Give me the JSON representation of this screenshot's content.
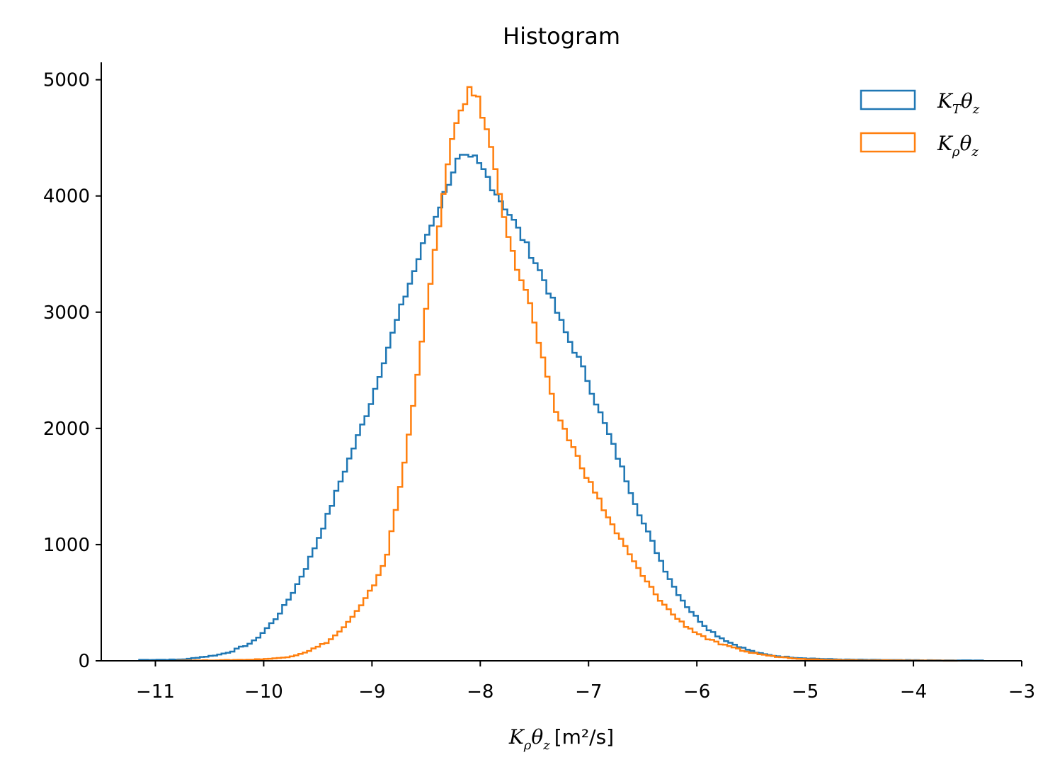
{
  "chart_data": {
    "type": "histogram",
    "title": "Histogram",
    "xlabel": "Kρθz [m²/s]",
    "ylabel": "",
    "xlim": [
      -11.5,
      -3
    ],
    "ylim": [
      0,
      5150
    ],
    "xticks": [
      -11,
      -10,
      -9,
      -8,
      -7,
      -6,
      -5,
      -4,
      -3
    ],
    "xtick_labels": [
      "−11",
      "−10",
      "−9",
      "−8",
      "−7",
      "−6",
      "−5",
      "−4",
      "−3"
    ],
    "yticks": [
      0,
      1000,
      2000,
      3000,
      4000,
      5000
    ],
    "ytick_labels": [
      "0",
      "1000",
      "2000",
      "3000",
      "4000",
      "5000"
    ],
    "grid": false,
    "legend_position": "top-right",
    "series": [
      {
        "name": "KTθz",
        "color": "#1f77b4",
        "style": "step",
        "points": [
          [
            -11.15,
            0
          ],
          [
            -11.15,
            8
          ],
          [
            -10.8,
            10
          ],
          [
            -10.7,
            15
          ],
          [
            -10.6,
            30
          ],
          [
            -10.5,
            40
          ],
          [
            -10.4,
            55
          ],
          [
            -10.3,
            80
          ],
          [
            -10.2,
            120
          ],
          [
            -10.1,
            160
          ],
          [
            -10.0,
            250
          ],
          [
            -9.9,
            350
          ],
          [
            -9.8,
            480
          ],
          [
            -9.7,
            640
          ],
          [
            -9.6,
            820
          ],
          [
            -9.5,
            1040
          ],
          [
            -9.4,
            1270
          ],
          [
            -9.3,
            1520
          ],
          [
            -9.2,
            1760
          ],
          [
            -9.1,
            2000
          ],
          [
            -9.0,
            2250
          ],
          [
            -8.9,
            2560
          ],
          [
            -8.8,
            2840
          ],
          [
            -8.7,
            3120
          ],
          [
            -8.6,
            3380
          ],
          [
            -8.5,
            3650
          ],
          [
            -8.45,
            3750
          ],
          [
            -8.4,
            3860
          ],
          [
            -8.35,
            3960
          ],
          [
            -8.3,
            4100
          ],
          [
            -8.25,
            4220
          ],
          [
            -8.2,
            4320
          ],
          [
            -8.15,
            4330
          ],
          [
            -8.1,
            4300
          ],
          [
            -8.05,
            4320
          ],
          [
            -8.0,
            4250
          ],
          [
            -7.95,
            4200
          ],
          [
            -7.9,
            4100
          ],
          [
            -7.8,
            3950
          ],
          [
            -7.7,
            3800
          ],
          [
            -7.6,
            3620
          ],
          [
            -7.5,
            3450
          ],
          [
            -7.4,
            3260
          ],
          [
            -7.3,
            3020
          ],
          [
            -7.2,
            2800
          ],
          [
            -7.1,
            2620
          ],
          [
            -7.0,
            2400
          ],
          [
            -6.9,
            2150
          ],
          [
            -6.8,
            1920
          ],
          [
            -6.7,
            1680
          ],
          [
            -6.6,
            1440
          ],
          [
            -6.5,
            1200
          ],
          [
            -6.4,
            1000
          ],
          [
            -6.3,
            800
          ],
          [
            -6.2,
            620
          ],
          [
            -6.1,
            480
          ],
          [
            -6.0,
            370
          ],
          [
            -5.9,
            280
          ],
          [
            -5.8,
            210
          ],
          [
            -5.7,
            160
          ],
          [
            -5.6,
            120
          ],
          [
            -5.5,
            85
          ],
          [
            -5.4,
            60
          ],
          [
            -5.3,
            45
          ],
          [
            -5.2,
            35
          ],
          [
            -5.1,
            28
          ],
          [
            -5.0,
            22
          ],
          [
            -4.9,
            18
          ],
          [
            -4.8,
            14
          ],
          [
            -4.6,
            10
          ],
          [
            -4.4,
            8
          ],
          [
            -4.2,
            6
          ],
          [
            -4.0,
            5
          ],
          [
            -3.8,
            4
          ],
          [
            -3.6,
            3
          ],
          [
            -3.35,
            3
          ]
        ]
      },
      {
        "name": "Kρθz",
        "color": "#ff7f0e",
        "style": "step",
        "points": [
          [
            -10.8,
            0
          ],
          [
            -10.8,
            2
          ],
          [
            -10.4,
            5
          ],
          [
            -10.1,
            10
          ],
          [
            -9.9,
            20
          ],
          [
            -9.8,
            30
          ],
          [
            -9.7,
            50
          ],
          [
            -9.6,
            80
          ],
          [
            -9.5,
            120
          ],
          [
            -9.4,
            170
          ],
          [
            -9.3,
            250
          ],
          [
            -9.2,
            350
          ],
          [
            -9.1,
            470
          ],
          [
            -9.0,
            620
          ],
          [
            -8.9,
            820
          ],
          [
            -8.85,
            950
          ],
          [
            -8.8,
            1200
          ],
          [
            -8.75,
            1450
          ],
          [
            -8.7,
            1700
          ],
          [
            -8.65,
            2000
          ],
          [
            -8.6,
            2350
          ],
          [
            -8.55,
            2700
          ],
          [
            -8.5,
            3000
          ],
          [
            -8.45,
            3300
          ],
          [
            -8.4,
            3650
          ],
          [
            -8.35,
            3950
          ],
          [
            -8.3,
            4250
          ],
          [
            -8.25,
            4500
          ],
          [
            -8.2,
            4700
          ],
          [
            -8.15,
            4800
          ],
          [
            -8.1,
            4900
          ],
          [
            -8.05,
            4880
          ],
          [
            -8.0,
            4780
          ],
          [
            -7.95,
            4600
          ],
          [
            -7.9,
            4400
          ],
          [
            -7.85,
            4200
          ],
          [
            -7.8,
            3950
          ],
          [
            -7.75,
            3700
          ],
          [
            -7.7,
            3500
          ],
          [
            -7.65,
            3350
          ],
          [
            -7.6,
            3250
          ],
          [
            -7.55,
            3100
          ],
          [
            -7.5,
            2900
          ],
          [
            -7.45,
            2700
          ],
          [
            -7.4,
            2500
          ],
          [
            -7.35,
            2300
          ],
          [
            -7.3,
            2150
          ],
          [
            -7.2,
            1950
          ],
          [
            -7.1,
            1750
          ],
          [
            -7.0,
            1560
          ],
          [
            -6.9,
            1380
          ],
          [
            -6.8,
            1200
          ],
          [
            -6.7,
            1040
          ],
          [
            -6.6,
            880
          ],
          [
            -6.5,
            730
          ],
          [
            -6.4,
            600
          ],
          [
            -6.3,
            480
          ],
          [
            -6.2,
            380
          ],
          [
            -6.1,
            300
          ],
          [
            -6.0,
            240
          ],
          [
            -5.9,
            190
          ],
          [
            -5.8,
            150
          ],
          [
            -5.7,
            120
          ],
          [
            -5.6,
            95
          ],
          [
            -5.5,
            70
          ],
          [
            -5.4,
            55
          ],
          [
            -5.3,
            40
          ],
          [
            -5.2,
            30
          ],
          [
            -5.1,
            22
          ],
          [
            -5.0,
            16
          ],
          [
            -4.9,
            12
          ],
          [
            -4.8,
            9
          ],
          [
            -4.6,
            6
          ],
          [
            -4.4,
            4
          ],
          [
            -4.2,
            3
          ],
          [
            -3.9,
            2
          ],
          [
            -3.6,
            1
          ]
        ]
      }
    ]
  },
  "legend": {
    "entries": [
      {
        "base": "K",
        "sub": "T",
        "mid": "θ",
        "sub2": "z",
        "color": "#1f77b4"
      },
      {
        "base": "K",
        "sub": "ρ",
        "mid": "θ",
        "sub2": "z",
        "color": "#ff7f0e"
      }
    ]
  },
  "xaxis_label_parts": {
    "base": "K",
    "sub": "ρ",
    "mid": "θ",
    "sub2": "z",
    "unit": "[m²/s]"
  }
}
